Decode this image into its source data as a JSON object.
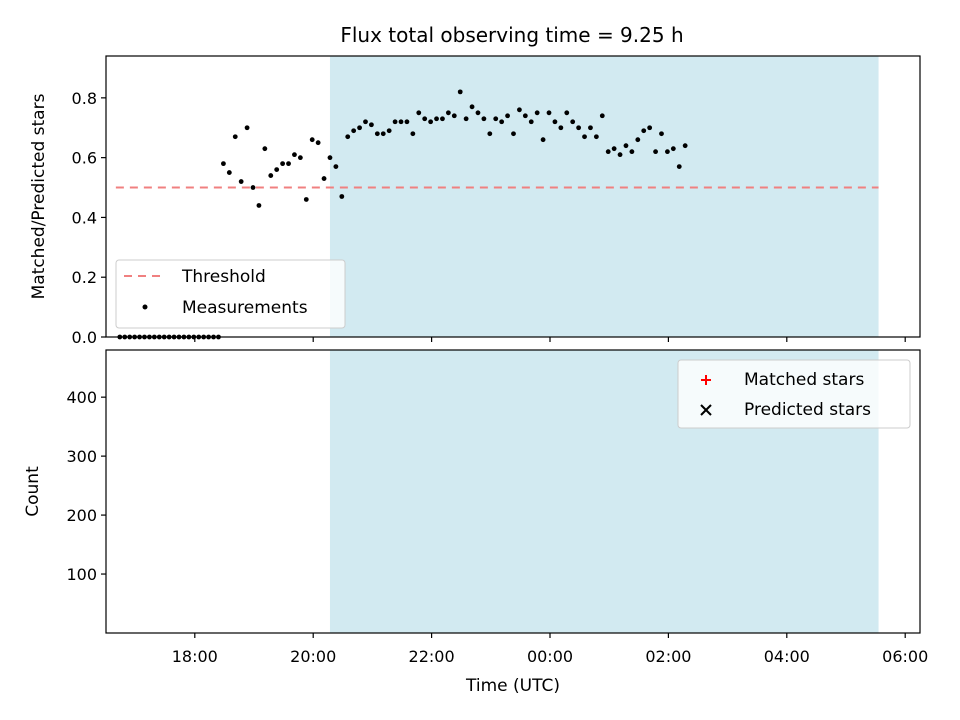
{
  "chart_data": {
    "title": "Flux total observing time = 9.25 h",
    "xlabel": "Time (UTC)",
    "x_unit": "hours (UTC clock time)",
    "xlim": [
      "16:30",
      "06:15"
    ],
    "x_ticks": [
      {
        "time": "18:00",
        "label": "18:00"
      },
      {
        "time": "20:00",
        "label": "20:00"
      },
      {
        "time": "22:00",
        "label": "22:00"
      },
      {
        "time": "00:00",
        "label": "00:00"
      },
      {
        "time": "02:00",
        "label": "02:00"
      },
      {
        "time": "04:00",
        "label": "04:00"
      },
      {
        "time": "06:00",
        "label": "06:00"
      }
    ],
    "observing_window": {
      "start": "20:17",
      "end": "05:33",
      "color": "#add8e6"
    },
    "panels": [
      {
        "type": "scatter",
        "ylabel": "Matched/Predicted stars",
        "ylim": [
          0,
          0.94
        ],
        "yticks": [
          "0.0",
          "0.2",
          "0.4",
          "0.6",
          "0.8"
        ],
        "threshold": {
          "name": "Threshold",
          "value": 0.5,
          "x_range": [
            "16:40",
            "05:33"
          ],
          "color": "#f08080"
        },
        "legend": {
          "location": "lower-left"
        },
        "series": [
          {
            "name": "Measurements",
            "color": "#000000",
            "marker": "dot",
            "points": [
              [
                "16:44",
                0.0
              ],
              [
                "16:49",
                0.0
              ],
              [
                "16:54",
                0.0
              ],
              [
                "16:59",
                0.0
              ],
              [
                "17:04",
                0.0
              ],
              [
                "17:09",
                0.0
              ],
              [
                "17:14",
                0.0
              ],
              [
                "17:19",
                0.0
              ],
              [
                "17:24",
                0.0
              ],
              [
                "17:29",
                0.0
              ],
              [
                "17:34",
                0.0
              ],
              [
                "17:39",
                0.0
              ],
              [
                "17:44",
                0.0
              ],
              [
                "17:49",
                0.0
              ],
              [
                "17:54",
                0.0
              ],
              [
                "17:59",
                0.0
              ],
              [
                "18:04",
                0.0
              ],
              [
                "18:09",
                0.0
              ],
              [
                "18:14",
                0.0
              ],
              [
                "18:19",
                0.0
              ],
              [
                "18:24",
                0.0
              ],
              [
                "18:29",
                0.58
              ],
              [
                "18:35",
                0.55
              ],
              [
                "18:41",
                0.67
              ],
              [
                "18:47",
                0.52
              ],
              [
                "18:53",
                0.7
              ],
              [
                "18:59",
                0.5
              ],
              [
                "19:05",
                0.44
              ],
              [
                "19:11",
                0.63
              ],
              [
                "19:17",
                0.54
              ],
              [
                "19:23",
                0.56
              ],
              [
                "19:29",
                0.58
              ],
              [
                "19:35",
                0.58
              ],
              [
                "19:41",
                0.61
              ],
              [
                "19:47",
                0.6
              ],
              [
                "19:53",
                0.46
              ],
              [
                "19:59",
                0.66
              ],
              [
                "20:05",
                0.65
              ],
              [
                "20:11",
                0.53
              ],
              [
                "20:17",
                0.6
              ],
              [
                "20:23",
                0.57
              ],
              [
                "20:29",
                0.47
              ],
              [
                "20:35",
                0.67
              ],
              [
                "20:41",
                0.69
              ],
              [
                "20:47",
                0.7
              ],
              [
                "20:53",
                0.72
              ],
              [
                "20:59",
                0.71
              ],
              [
                "21:05",
                0.68
              ],
              [
                "21:11",
                0.68
              ],
              [
                "21:17",
                0.69
              ],
              [
                "21:23",
                0.72
              ],
              [
                "21:29",
                0.72
              ],
              [
                "21:35",
                0.72
              ],
              [
                "21:41",
                0.68
              ],
              [
                "21:47",
                0.75
              ],
              [
                "21:53",
                0.73
              ],
              [
                "21:59",
                0.72
              ],
              [
                "22:05",
                0.73
              ],
              [
                "22:11",
                0.73
              ],
              [
                "22:17",
                0.75
              ],
              [
                "22:23",
                0.74
              ],
              [
                "22:29",
                0.82
              ],
              [
                "22:35",
                0.73
              ],
              [
                "22:41",
                0.77
              ],
              [
                "22:47",
                0.75
              ],
              [
                "22:53",
                0.73
              ],
              [
                "22:59",
                0.68
              ],
              [
                "23:05",
                0.73
              ],
              [
                "23:11",
                0.72
              ],
              [
                "23:17",
                0.74
              ],
              [
                "23:23",
                0.68
              ],
              [
                "23:29",
                0.76
              ],
              [
                "23:35",
                0.74
              ],
              [
                "23:41",
                0.72
              ],
              [
                "23:47",
                0.75
              ],
              [
                "23:53",
                0.66
              ],
              [
                "23:59",
                0.75
              ],
              [
                "00:05",
                0.72
              ],
              [
                "00:11",
                0.7
              ],
              [
                "00:17",
                0.75
              ],
              [
                "00:23",
                0.72
              ],
              [
                "00:29",
                0.7
              ],
              [
                "00:35",
                0.67
              ],
              [
                "00:41",
                0.7
              ],
              [
                "00:47",
                0.67
              ],
              [
                "00:53",
                0.74
              ],
              [
                "00:59",
                0.62
              ],
              [
                "01:05",
                0.63
              ],
              [
                "01:11",
                0.61
              ],
              [
                "01:17",
                0.64
              ],
              [
                "01:23",
                0.62
              ],
              [
                "01:29",
                0.66
              ],
              [
                "01:35",
                0.69
              ],
              [
                "01:41",
                0.7
              ],
              [
                "01:47",
                0.62
              ],
              [
                "01:53",
                0.68
              ],
              [
                "01:59",
                0.62
              ],
              [
                "02:05",
                0.63
              ],
              [
                "02:11",
                0.57
              ],
              [
                "02:17",
                0.64
              ]
            ]
          }
        ]
      },
      {
        "type": "scatter",
        "ylabel": "Count",
        "ylim": [
          0,
          480
        ],
        "yticks": [
          "100",
          "200",
          "300",
          "400"
        ],
        "legend": {
          "location": "upper-right"
        },
        "series": [
          {
            "name": "Matched stars",
            "color": "#ff0000",
            "marker": "plus"
          },
          {
            "name": "Predicted stars",
            "color": "#000000",
            "marker": "x"
          }
        ]
      }
    ]
  }
}
